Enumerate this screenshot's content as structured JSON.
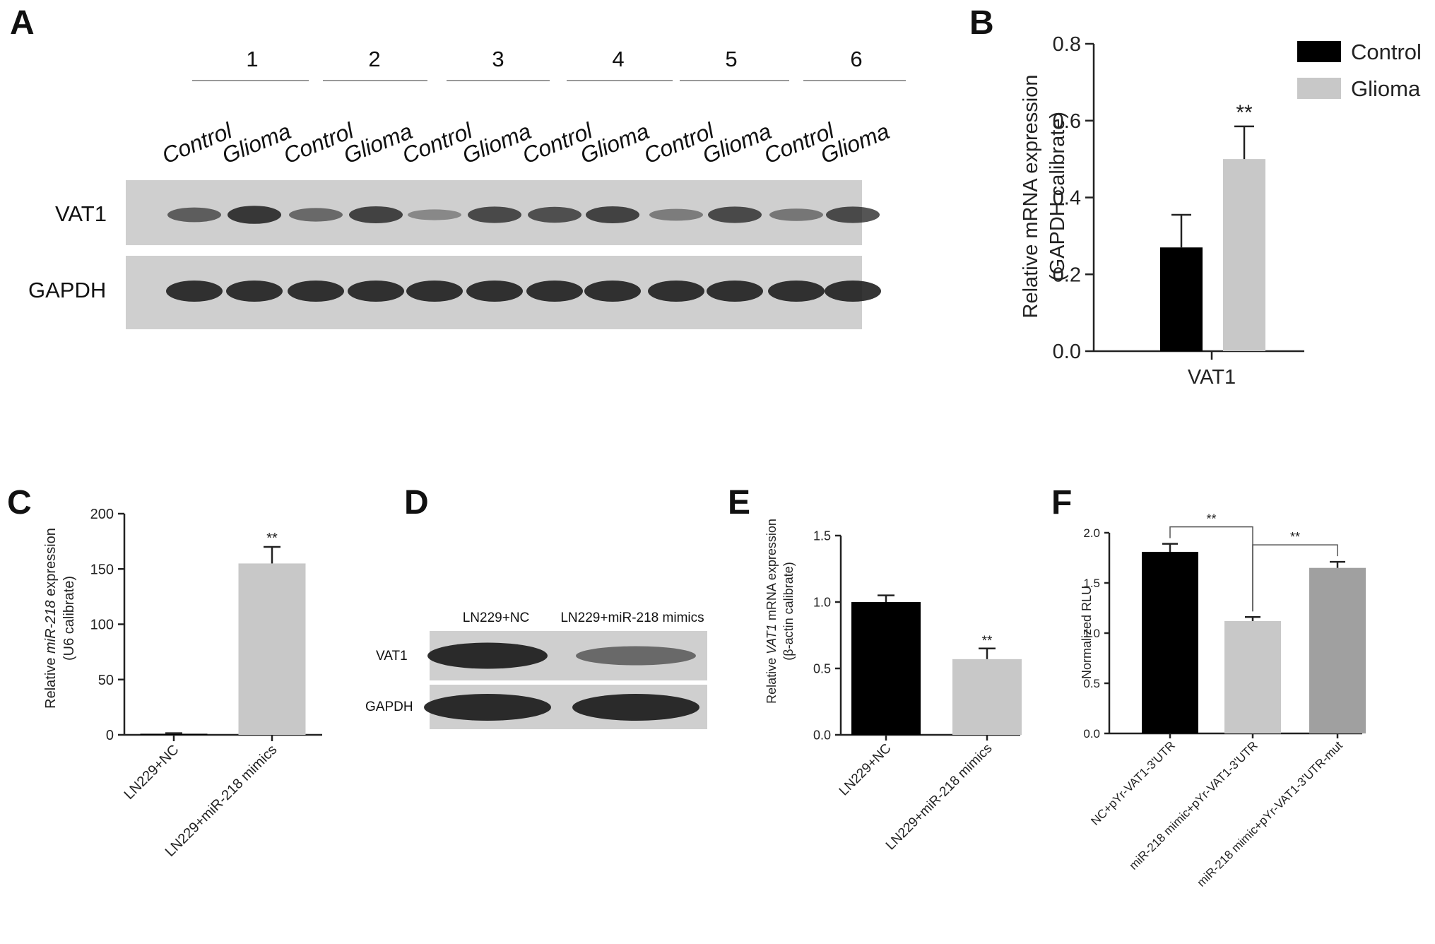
{
  "panels": {
    "A": {
      "letter": "A",
      "groups": [
        "1",
        "2",
        "3",
        "4",
        "5",
        "6"
      ],
      "lanes": [
        "Control",
        "Glioma",
        "Control",
        "Glioma",
        "Control",
        "Glioma",
        "Control",
        "Glioma",
        "Control",
        "Glioma",
        "Control",
        "Glioma"
      ],
      "rows": [
        "VAT1",
        "GAPDH"
      ],
      "vat1_band_intensity": [
        0.55,
        0.85,
        0.45,
        0.75,
        0.2,
        0.7,
        0.65,
        0.75,
        0.3,
        0.7,
        0.35,
        0.7
      ],
      "gapdh_band_intensity": [
        0.9,
        0.9,
        0.9,
        0.9,
        0.9,
        0.9,
        0.9,
        0.9,
        0.9,
        0.9,
        0.9,
        0.9
      ]
    },
    "D": {
      "letter": "D",
      "lanes": [
        "LN229+NC",
        "LN229+miR-218 mimics"
      ],
      "rows": [
        "VAT1",
        "GAPDH"
      ],
      "vat1_band_intensity": [
        0.95,
        0.45
      ],
      "gapdh_band_intensity": [
        0.95,
        0.95
      ]
    }
  },
  "chart_data": [
    {
      "id": "B",
      "letter": "B",
      "type": "bar",
      "categories": [
        "VAT1"
      ],
      "series": [
        {
          "name": "Control",
          "values": [
            0.27
          ],
          "error": [
            0.085
          ],
          "color": "#000000"
        },
        {
          "name": "Glioma",
          "values": [
            0.5
          ],
          "error": [
            0.085
          ],
          "color": "#c8c8c8"
        }
      ],
      "ylabel_line1": "Relative mRNA expression",
      "ylabel_line2": "(GAPDH calibrate)",
      "xlabel": "VAT1",
      "ylim": [
        0,
        0.8
      ],
      "yticks": [
        "0.0",
        "0.2",
        "0.4",
        "0.6",
        "0.8"
      ],
      "significance": [
        {
          "label": "**",
          "over": 1
        }
      ],
      "legend": "top-right",
      "grid": false
    },
    {
      "id": "C",
      "letter": "C",
      "type": "bar",
      "categories": [
        "LN229+NC",
        "LN229+miR-218 mimics"
      ],
      "values": [
        1,
        155
      ],
      "errors": [
        0.5,
        15
      ],
      "colors": [
        "#000000",
        "#c8c8c8"
      ],
      "ylabel_pre": "Relative ",
      "ylabel_italic": "miR-218",
      "ylabel_post": " expression",
      "ylabel_line2": "(U6 calibrate)",
      "ylim": [
        0,
        200
      ],
      "yticks": [
        "0",
        "50",
        "100",
        "150",
        "200"
      ],
      "significance": [
        {
          "label": "**",
          "over": 1
        }
      ],
      "grid": false
    },
    {
      "id": "E",
      "letter": "E",
      "type": "bar",
      "categories": [
        "LN229+NC",
        "LN229+miR-218 mimics"
      ],
      "values": [
        1.0,
        0.57
      ],
      "errors": [
        0.05,
        0.08
      ],
      "colors": [
        "#000000",
        "#c8c8c8"
      ],
      "ylabel_pre": "Relative ",
      "ylabel_italic": "VAT1",
      "ylabel_post": " mRNA expression",
      "ylabel_line2": "(β-actin calibrate)",
      "ylim": [
        0,
        1.5
      ],
      "yticks": [
        "0.0",
        "0.5",
        "1.0",
        "1.5"
      ],
      "significance": [
        {
          "label": "**",
          "over": 1
        }
      ],
      "grid": false
    },
    {
      "id": "F",
      "letter": "F",
      "type": "bar",
      "categories": [
        "NC+pYr-VAT1-3'UTR",
        "miR-218 mimic+pYr-VAT1-3'UTR",
        "miR-218 mimic+pYr-VAT1-3'UTR-mut"
      ],
      "values": [
        1.81,
        1.12,
        1.65
      ],
      "errors": [
        0.08,
        0.04,
        0.06
      ],
      "colors": [
        "#000000",
        "#c8c8c8",
        "#a0a0a0"
      ],
      "ylabel": "Normalized RLU",
      "ylim": [
        0,
        2.0
      ],
      "yticks": [
        "0.0",
        "0.5",
        "1.0",
        "1.5",
        "2.0"
      ],
      "brackets": [
        {
          "from": 0,
          "to": 1,
          "label": "**"
        },
        {
          "from": 1,
          "to": 2,
          "label": "**"
        }
      ],
      "grid": false
    }
  ]
}
